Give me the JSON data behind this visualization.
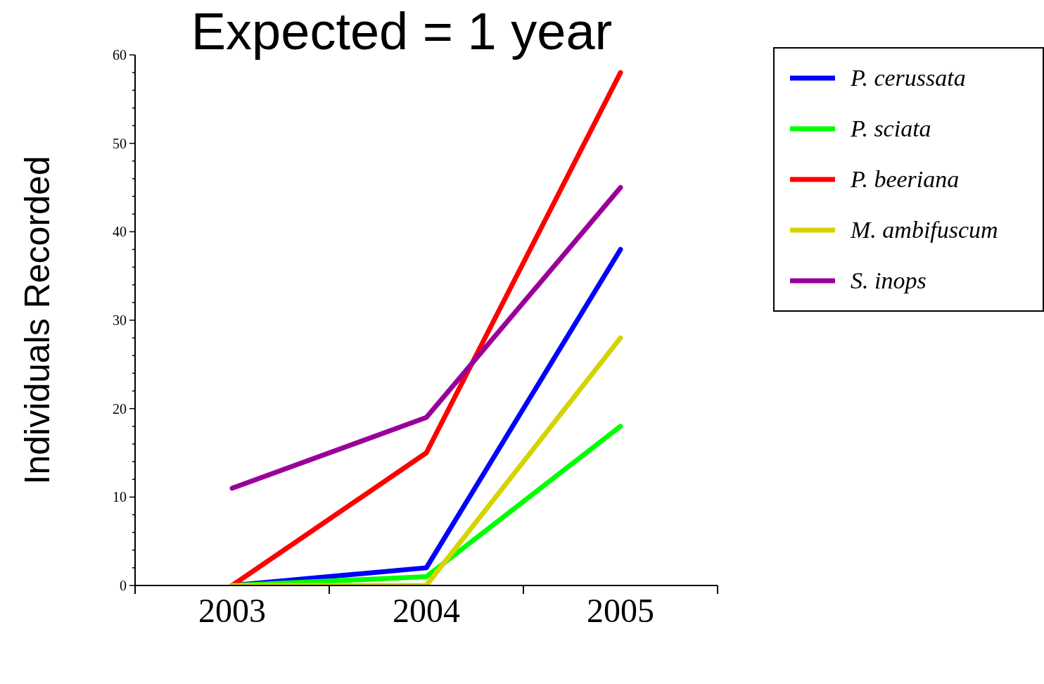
{
  "chart_data": {
    "type": "line",
    "title": "Expected = 1 year",
    "ylabel": "Individuals Recorded",
    "x": [
      2003,
      2004,
      2005
    ],
    "series": [
      {
        "name": "P. cerussata",
        "color": "#0000ff",
        "values": [
          0,
          2,
          38
        ]
      },
      {
        "name": "P. sciata",
        "color": "#00ff00",
        "values": [
          0,
          1,
          18
        ]
      },
      {
        "name": "P. beeriana",
        "color": "#ff0000",
        "values": [
          0,
          15,
          58
        ]
      },
      {
        "name": "M. ambifuscum",
        "color": "#d4d400",
        "values": [
          0,
          0,
          28
        ]
      },
      {
        "name": "S. inops",
        "color": "#990099",
        "values": [
          11,
          19,
          45
        ]
      }
    ],
    "xlim": [
      2002.5,
      2005.5
    ],
    "xticks": [
      {
        "value": 2002.5,
        "label": null
      },
      2003,
      {
        "value": 2003.5,
        "label": null
      },
      2004,
      {
        "value": 2004.5,
        "label": null
      },
      2005,
      {
        "value": 2005.5,
        "label": null
      }
    ],
    "ylim": [
      0,
      60
    ],
    "yticks": [
      0,
      {
        "value": 2,
        "label": null
      },
      {
        "value": 4,
        "label": null
      },
      {
        "value": 6,
        "label": null
      },
      {
        "value": 8,
        "label": null
      },
      10,
      {
        "value": 12,
        "label": null
      },
      {
        "value": 14,
        "label": null
      },
      {
        "value": 16,
        "label": null
      },
      {
        "value": 18,
        "label": null
      },
      20,
      {
        "value": 22,
        "label": null
      },
      {
        "value": 24,
        "label": null
      },
      {
        "value": 26,
        "label": null
      },
      {
        "value": 28,
        "label": null
      },
      30,
      {
        "value": 32,
        "label": null
      },
      {
        "value": 34,
        "label": null
      },
      {
        "value": 36,
        "label": null
      },
      {
        "value": 38,
        "label": null
      },
      40,
      {
        "value": 42,
        "label": null
      },
      {
        "value": 44,
        "label": null
      },
      {
        "value": 46,
        "label": null
      },
      {
        "value": 48,
        "label": null
      },
      50,
      {
        "value": 52,
        "label": null
      },
      {
        "value": 54,
        "label": null
      },
      {
        "value": 56,
        "label": null
      },
      {
        "value": 58,
        "label": null
      },
      60
    ],
    "grid": false,
    "legend": "top right",
    "line_style": "solid"
  }
}
